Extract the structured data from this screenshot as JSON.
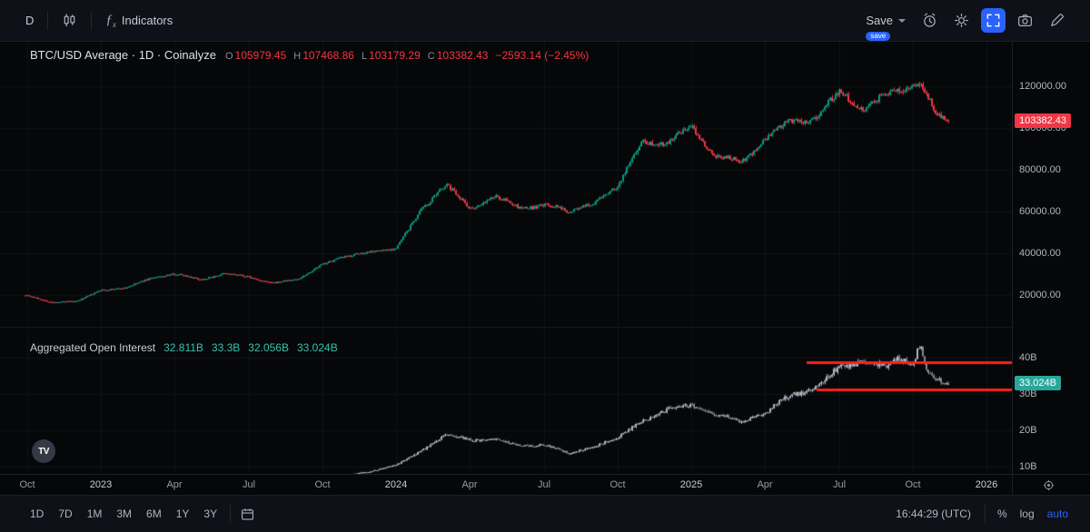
{
  "colors": {
    "up": "#089981",
    "down": "#f23645",
    "oi_up": "#b0b6c0",
    "oi_down": "#7f8792",
    "drawing_red": "#fb2020",
    "price_badge_bg": "#f23645",
    "oi_badge_bg": "#2aa79b",
    "accent_blue": "#2962ff",
    "grid": "rgba(140,148,160,0.08)"
  },
  "top_toolbar": {
    "interval": "D",
    "indicators": "Indicators",
    "save": "Save",
    "save_badge": "save"
  },
  "legend": {
    "title": "BTC/USD Average · 1D · Coinalyze",
    "ohlc": [
      {
        "k": "O",
        "v": "105979.45"
      },
      {
        "k": "H",
        "v": "107468.86"
      },
      {
        "k": "L",
        "v": "103179.29"
      },
      {
        "k": "C",
        "v": "103382.43"
      }
    ],
    "change": "−2593.14 (−2.45%)"
  },
  "oi_legend": {
    "title": "Aggregated Open Interest",
    "values": [
      "32.811B",
      "33.3B",
      "32.056B",
      "33.024B"
    ]
  },
  "axes": {
    "price_labels": [
      "120000.00",
      "100000.00",
      "80000.00",
      "60000.00",
      "40000.00",
      "20000.00"
    ],
    "oi_labels": [
      "40B",
      "30B",
      "20B",
      "10B"
    ],
    "price_badge": "103382.43",
    "oi_badge": "33.024B"
  },
  "bottom_toolbar": {
    "ranges": [
      "1D",
      "7D",
      "1M",
      "3M",
      "6M",
      "1Y",
      "3Y"
    ],
    "clock": "16:44:29 (UTC)",
    "percent": "%",
    "log": "log",
    "auto": "auto"
  },
  "chart_data": {
    "type": "candlestick",
    "title": "BTC/USD Average · 1D with Aggregated Open Interest pane",
    "x_unit": "months since Oct 2022",
    "price_pane": {
      "ylim": [
        12000,
        130000
      ],
      "tick_values": [
        120000,
        100000,
        80000,
        60000,
        40000,
        20000
      ],
      "last_close": 103382.43,
      "monthly_close_anchors": [
        [
          0,
          19500
        ],
        [
          1,
          16300
        ],
        [
          2,
          16700
        ],
        [
          3,
          23100
        ],
        [
          4,
          23500
        ],
        [
          5,
          28300
        ],
        [
          6,
          29300
        ],
        [
          7,
          27200
        ],
        [
          8,
          30400
        ],
        [
          9,
          29200
        ],
        [
          10,
          26100
        ],
        [
          11,
          27000
        ],
        [
          12,
          34500
        ],
        [
          13,
          37700
        ],
        [
          14,
          42300
        ],
        [
          15,
          42600
        ],
        [
          16,
          61200
        ],
        [
          17,
          71300
        ],
        [
          18,
          60600
        ],
        [
          19,
          67500
        ],
        [
          20,
          62700
        ],
        [
          21,
          64600
        ],
        [
          22,
          59000
        ],
        [
          23,
          63300
        ],
        [
          24,
          70200
        ],
        [
          25,
          96400
        ],
        [
          26,
          93400
        ],
        [
          27,
          102400
        ],
        [
          28,
          84300
        ],
        [
          29,
          82500
        ],
        [
          30,
          94200
        ],
        [
          31,
          104600
        ],
        [
          32,
          107100
        ],
        [
          33,
          115800
        ],
        [
          34,
          108200
        ],
        [
          35,
          114000
        ],
        [
          36,
          121500
        ],
        [
          36.3,
          124500
        ],
        [
          37,
          107500
        ],
        [
          37.5,
          103382
        ]
      ]
    },
    "oi_pane": {
      "ylim_B": [
        0,
        47
      ],
      "tick_values_B": [
        40,
        30,
        20,
        10
      ],
      "last_B": 33.024,
      "monthly_anchors_B": [
        [
          0,
          3.5
        ],
        [
          2,
          4.2
        ],
        [
          4,
          4.8
        ],
        [
          6,
          5.2
        ],
        [
          8,
          5.0
        ],
        [
          10,
          4.6
        ],
        [
          12,
          6.0
        ],
        [
          14,
          9.0
        ],
        [
          15,
          10.5
        ],
        [
          16,
          14.5
        ],
        [
          17,
          18.5
        ],
        [
          18,
          17.0
        ],
        [
          19,
          17.5
        ],
        [
          20,
          16.0
        ],
        [
          21,
          16.5
        ],
        [
          22,
          13.5
        ],
        [
          23,
          15.2
        ],
        [
          24,
          17.5
        ],
        [
          25,
          23.0
        ],
        [
          26,
          26.0
        ],
        [
          27,
          27.5
        ],
        [
          28,
          24.0
        ],
        [
          29,
          22.0
        ],
        [
          30,
          24.5
        ],
        [
          31,
          30.0
        ],
        [
          32,
          32.5
        ],
        [
          33,
          37.0
        ],
        [
          34,
          38.5
        ],
        [
          35,
          36.5
        ],
        [
          35.5,
          39.5
        ],
        [
          36,
          38.5
        ],
        [
          36.3,
          45.0
        ],
        [
          36.6,
          36.0
        ],
        [
          37,
          34.5
        ],
        [
          37.5,
          33.0
        ]
      ],
      "red_levels": [
        {
          "value_B": 38.8,
          "from_month": 31.7
        },
        {
          "value_B": 31.3,
          "from_month": 32.1
        }
      ]
    },
    "time_ticks": [
      {
        "label": "Oct",
        "month": 0
      },
      {
        "label": "2023",
        "month": 3
      },
      {
        "label": "Apr",
        "month": 6
      },
      {
        "label": "Jul",
        "month": 9
      },
      {
        "label": "Oct",
        "month": 12
      },
      {
        "label": "2024",
        "month": 15
      },
      {
        "label": "Apr",
        "month": 18
      },
      {
        "label": "Jul",
        "month": 21
      },
      {
        "label": "Oct",
        "month": 24
      },
      {
        "label": "2025",
        "month": 27
      },
      {
        "label": "Apr",
        "month": 30
      },
      {
        "label": "Jul",
        "month": 33
      },
      {
        "label": "Oct",
        "month": 36
      },
      {
        "label": "2026",
        "month": 39
      }
    ]
  }
}
